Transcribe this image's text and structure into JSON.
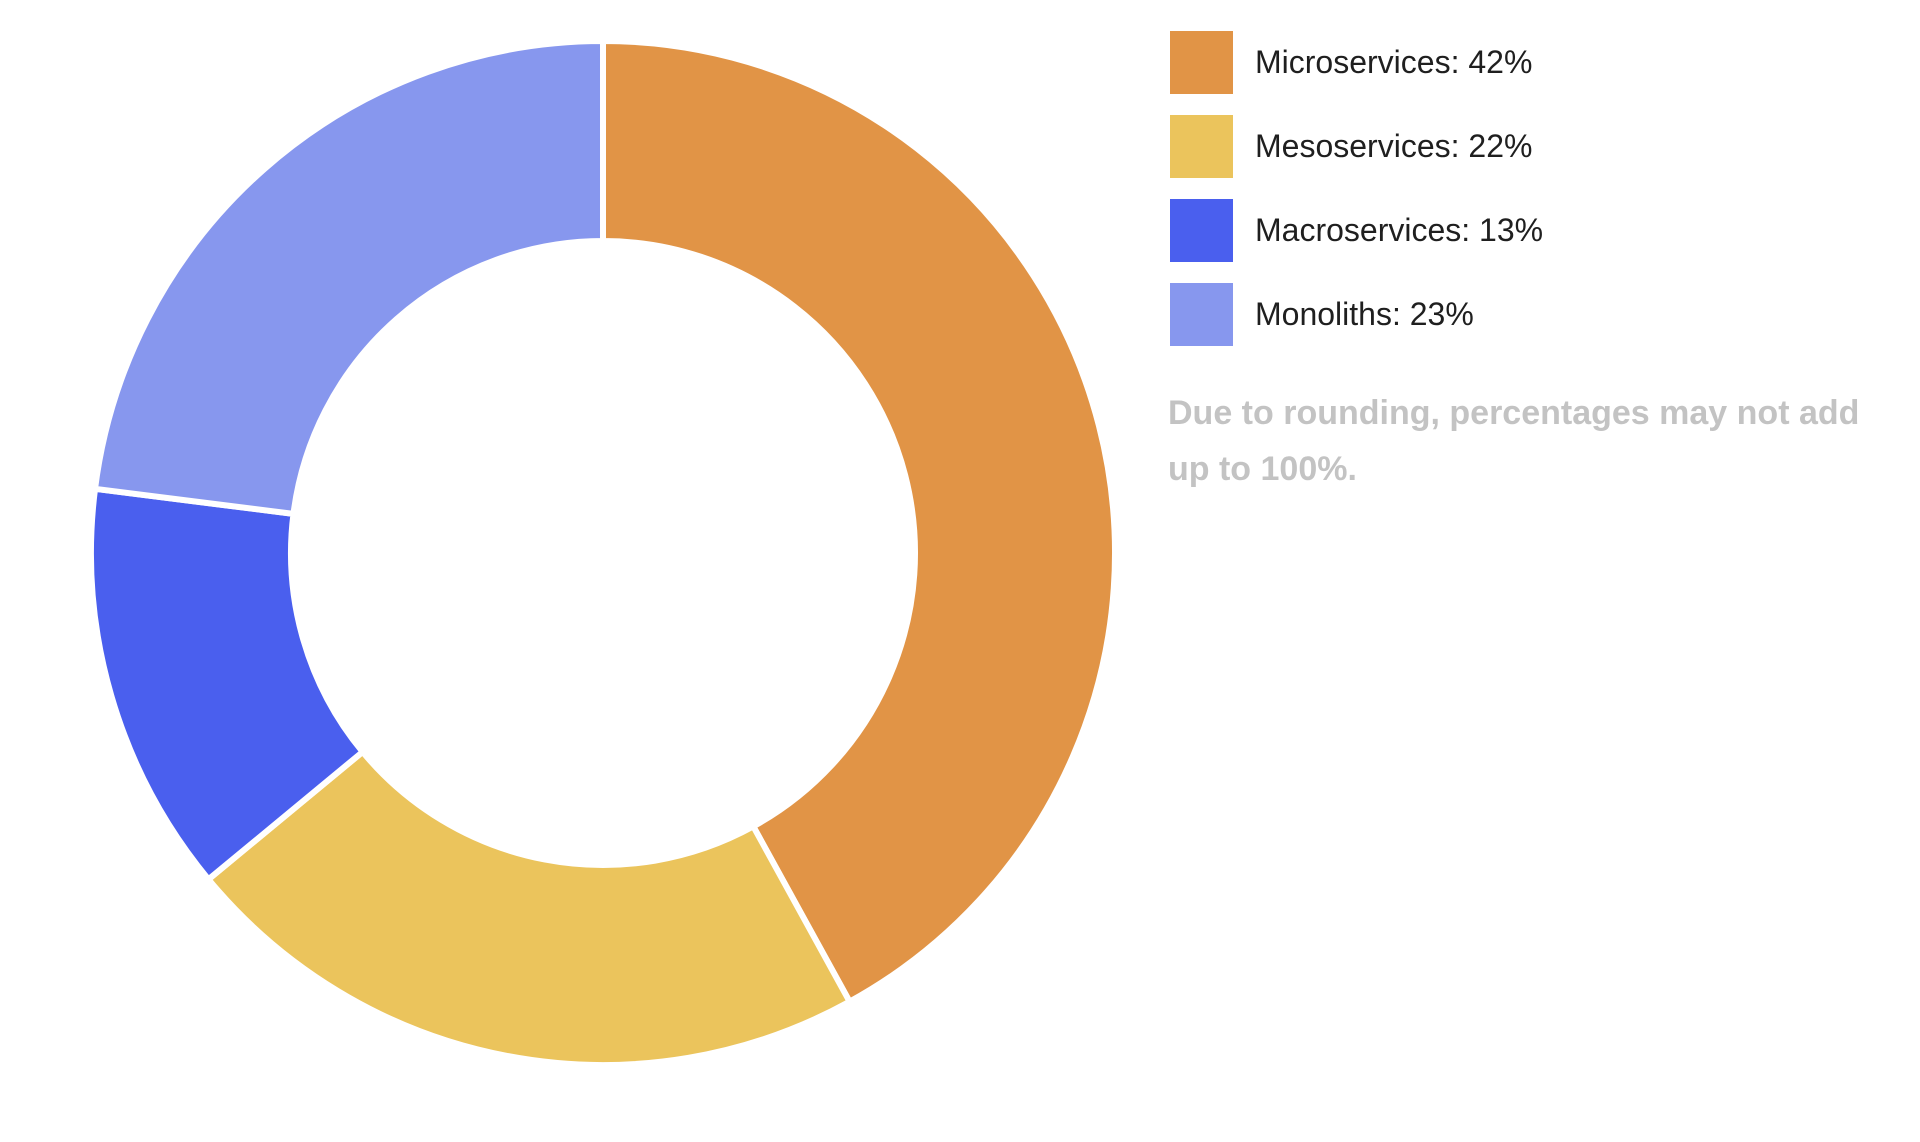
{
  "chart_data": {
    "type": "pie",
    "variant": "donut",
    "start_angle_deg": 0,
    "direction": "clockwise",
    "categories": [
      "Microservices",
      "Mesoservices",
      "Macroservices",
      "Monoliths"
    ],
    "values": [
      42,
      22,
      13,
      23
    ],
    "colors": [
      "#E19446",
      "#EBC45C",
      "#4A5FEE",
      "#8797EE"
    ],
    "legend": {
      "placement": "right",
      "items": [
        {
          "label": "Microservices: 42%",
          "color": "#E19446"
        },
        {
          "label": "Mesoservices: 22%",
          "color": "#EBC45C"
        },
        {
          "label": "Macroservices: 13%",
          "color": "#4A5FEE"
        },
        {
          "label": "Monoliths: 23%",
          "color": "#8797EE"
        }
      ]
    },
    "annotation": "Due to rounding, percentages may not add up to 100%."
  }
}
